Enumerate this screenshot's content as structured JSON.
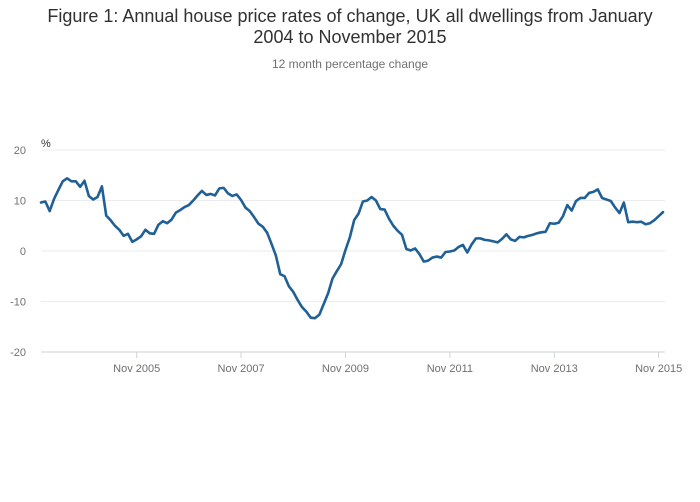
{
  "chart_data": {
    "type": "line",
    "title": "Figure 1: Annual house price rates of change, UK all dwellings from January 2004 to November 2015",
    "title_lines": [
      "Figure 1: Annual house price rates of change, UK all dwellings from January",
      "2004 to November 2015"
    ],
    "subtitle": "12 month percentage change",
    "ylabel": "%",
    "xlabel": "",
    "ylim": [
      -20,
      20
    ],
    "y_ticks": [
      20,
      10,
      0,
      -10,
      -20
    ],
    "x_tick_labels": [
      "Nov 2005",
      "Nov 2007",
      "Nov 2009",
      "Nov 2011",
      "Nov 2013",
      "Nov 2015"
    ],
    "x_tick_months": [
      22,
      46,
      70,
      94,
      118,
      142
    ],
    "grid": true,
    "line_color": "#206095",
    "x_start": "Jan 2004",
    "series": [
      {
        "values": [
          9.6,
          9.8,
          7.9,
          10.3,
          12.1,
          13.8,
          14.4,
          13.8,
          13.8,
          12.7,
          13.9,
          10.9,
          10.2,
          10.7,
          12.8,
          7.0,
          6.1,
          5.0,
          4.2,
          3.0,
          3.4,
          1.8,
          2.3,
          2.9,
          4.2,
          3.5,
          3.4,
          5.2,
          5.9,
          5.5,
          6.2,
          7.6,
          8.1,
          8.7,
          9.1,
          10.0,
          11.0,
          11.9,
          11.1,
          11.3,
          11.0,
          12.4,
          12.5,
          11.4,
          10.9,
          11.2,
          10.1,
          8.6,
          7.9,
          6.7,
          5.4,
          4.8,
          3.6,
          1.4,
          -0.9,
          -4.6,
          -5.0,
          -7.0,
          -8.1,
          -9.7,
          -11.1,
          -12.0,
          -13.2,
          -13.3,
          -12.6,
          -10.5,
          -8.4,
          -5.5,
          -4.0,
          -2.6,
          0.2,
          2.7,
          6.1,
          7.4,
          9.8,
          10.0,
          10.7,
          10.0,
          8.3,
          8.2,
          6.4,
          5.0,
          4.0,
          3.2,
          0.4,
          0.1,
          0.5,
          -0.6,
          -2.1,
          -1.9,
          -1.3,
          -1.1,
          -1.3,
          -0.2,
          -0.1,
          0.1,
          0.8,
          1.2,
          -0.3,
          1.3,
          2.5,
          2.5,
          2.2,
          2.1,
          1.9,
          1.7,
          2.4,
          3.3,
          2.3,
          2.0,
          2.8,
          2.7,
          3.0,
          3.2,
          3.5,
          3.7,
          3.8,
          5.5,
          5.4,
          5.6,
          6.9,
          9.1,
          8.0,
          9.9,
          10.5,
          10.5,
          11.5,
          11.7,
          12.2,
          10.5,
          10.2,
          9.9,
          8.6,
          7.5,
          9.6,
          5.7,
          5.8,
          5.7,
          5.8,
          5.3,
          5.5,
          6.1,
          6.9,
          7.7
        ]
      }
    ]
  }
}
